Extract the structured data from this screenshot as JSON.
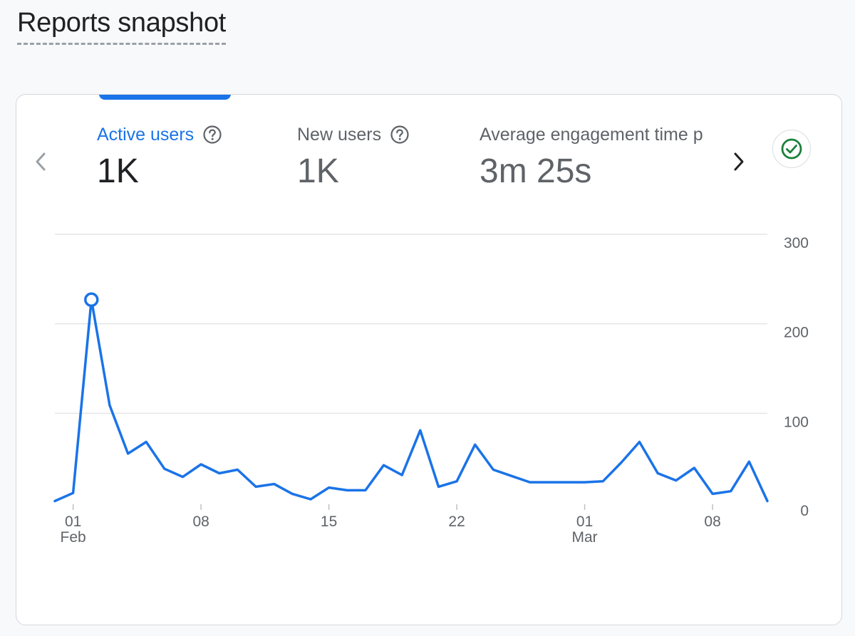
{
  "page": {
    "title": "Reports snapshot"
  },
  "metrics": [
    {
      "label": "Active users",
      "value": "1K",
      "active": true
    },
    {
      "label": "New users",
      "value": "1K",
      "active": false
    },
    {
      "label": "Average engagement time p",
      "value": "3m 25s",
      "active": false
    }
  ],
  "colors": {
    "accent": "#1a73e8",
    "success": "#188038",
    "gridline": "#e3e5e8",
    "axis_text": "#5f6368"
  },
  "icons": {
    "prev": "chevron-left-icon",
    "next": "chevron-right-icon",
    "help": "help-circle-icon",
    "status": "check-circle-icon"
  },
  "chart_data": {
    "type": "line",
    "title": "Active users",
    "series": [
      {
        "name": "Active users",
        "values": [
          2,
          11,
          227,
          109,
          55,
          68,
          38,
          29,
          43,
          33,
          37,
          18,
          21,
          10,
          4,
          17,
          14,
          14,
          42,
          31,
          81,
          18,
          24,
          65,
          37,
          30,
          23,
          23,
          23,
          23,
          24,
          45,
          68,
          33,
          25,
          39,
          10,
          13,
          46,
          2
        ]
      }
    ],
    "x_tick_labels": [
      {
        "day": "01",
        "month": "Feb"
      },
      {
        "day": "08",
        "month": ""
      },
      {
        "day": "15",
        "month": ""
      },
      {
        "day": "22",
        "month": ""
      },
      {
        "day": "01",
        "month": "Mar"
      },
      {
        "day": "08",
        "month": ""
      }
    ],
    "x_tick_indices": [
      1,
      8,
      15,
      22,
      29,
      36
    ],
    "y_ticks": [
      0,
      100,
      200,
      300
    ],
    "ylim": [
      0,
      300
    ],
    "highlighted_index": 2,
    "grid": true,
    "y_axis_position": "right"
  }
}
